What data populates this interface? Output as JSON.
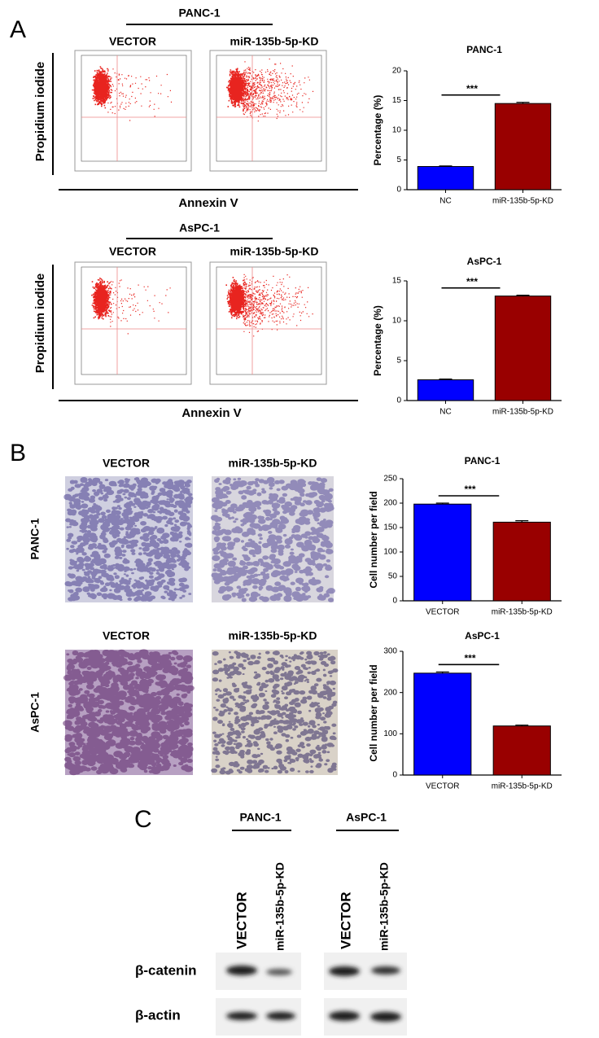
{
  "panel_labels": [
    "A",
    "B",
    "C"
  ],
  "panel_a": {
    "groups": [
      {
        "cell_line": "PANC-1",
        "conditions": [
          "VECTOR",
          "miR-135b-5p-KD"
        ]
      },
      {
        "cell_line": "AsPC-1",
        "conditions": [
          "VECTOR",
          "miR-135b-5p-KD"
        ]
      }
    ],
    "y_axis": "Propidium iodide",
    "x_axis": "Annexin V"
  },
  "panel_b": {
    "rows": [
      {
        "cell_line": "PANC-1",
        "conditions": [
          "VECTOR",
          "miR-135b-5p-KD"
        ]
      },
      {
        "cell_line": "AsPC-1",
        "conditions": [
          "VECTOR",
          "miR-135b-5p-KD"
        ]
      }
    ]
  },
  "panel_c": {
    "groups": [
      {
        "cell_line": "PANC-1",
        "lanes": [
          "VECTOR",
          "miR-135b-5p-KD"
        ]
      },
      {
        "cell_line": "AsPC-1",
        "lanes": [
          "VECTOR",
          "miR-135b-5p-KD"
        ]
      }
    ],
    "proteins": [
      "β-catenin",
      "β-actin"
    ]
  },
  "chart_data": [
    {
      "type": "bar",
      "title": "PANC-1",
      "ylabel": "Percentage (%)",
      "annotation": "***",
      "categories": [
        "NC",
        "miR-135b-5p-KD"
      ],
      "values": [
        3.9,
        14.5
      ],
      "errors": [
        0.1,
        0.2
      ],
      "colors": [
        "#0000ff",
        "#990000"
      ],
      "ylim": [
        0,
        20
      ],
      "yticks": [
        0,
        5,
        10,
        15,
        20
      ]
    },
    {
      "type": "bar",
      "title": "AsPC-1",
      "ylabel": "Percentage (%)",
      "annotation": "***",
      "categories": [
        "NC",
        "miR-135b-5p-KD"
      ],
      "values": [
        2.6,
        13.1
      ],
      "errors": [
        0.1,
        0.1
      ],
      "colors": [
        "#0000ff",
        "#990000"
      ],
      "ylim": [
        0,
        15
      ],
      "yticks": [
        0,
        5,
        10,
        15
      ]
    },
    {
      "type": "bar",
      "title": "PANC-1",
      "ylabel": "Cell number per field",
      "annotation": "***",
      "categories": [
        "VECTOR",
        "miR-135b-5p-KD"
      ],
      "values": [
        198,
        161
      ],
      "errors": [
        2,
        3
      ],
      "colors": [
        "#0000ff",
        "#990000"
      ],
      "ylim": [
        0,
        250
      ],
      "yticks": [
        0,
        50,
        100,
        150,
        200,
        250
      ]
    },
    {
      "type": "bar",
      "title": "AsPC-1",
      "ylabel": "Cell number per field",
      "annotation": "***",
      "categories": [
        "VECTOR",
        "miR-135b-5p-KD"
      ],
      "values": [
        247,
        119
      ],
      "errors": [
        3,
        2
      ],
      "colors": [
        "#0000ff",
        "#990000"
      ],
      "ylim": [
        0,
        300
      ],
      "yticks": [
        0,
        100,
        200,
        300
      ]
    }
  ]
}
